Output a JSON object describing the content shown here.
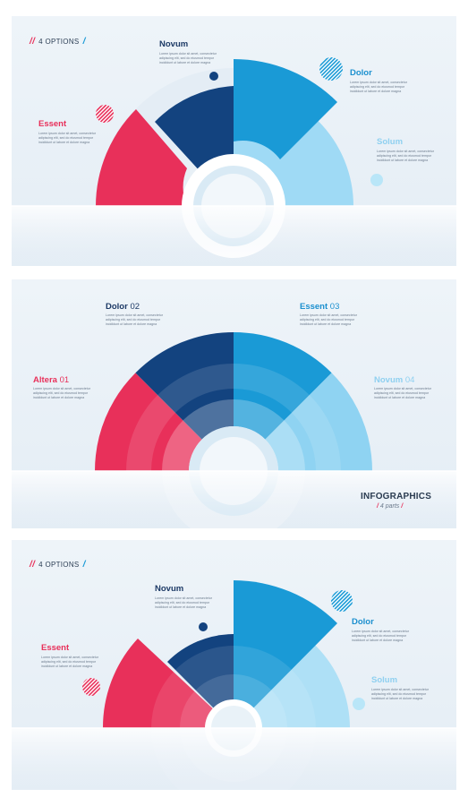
{
  "colors": {
    "red": "#e8305a",
    "dark_blue": "#13437f",
    "blue": "#1a9ad6",
    "light_blue": "#8fd3f2",
    "bg": "#eaf1f7"
  },
  "paragraph": "Lorem ipsum dolor sit amet, consectetur adipiscing elit, sed do eiusmod tempor incididunt ut labore et dolore magna",
  "panel1": {
    "options_label": "4 OPTIONS",
    "labels": {
      "novum": "Novum",
      "dolor": "Dolor",
      "essent": "Essent",
      "solum": "Solum"
    }
  },
  "panel2": {
    "labels": {
      "dolor": "Dolor",
      "dolor_num": "02",
      "essent": "Essent",
      "essent_num": "03",
      "altera": "Altera",
      "altera_num": "01",
      "novum": "Novum",
      "novum_num": "04"
    },
    "title": "INFOGRAPHICS",
    "subtitle": "4 parts"
  },
  "panel3": {
    "options_label": "4 OPTIONS",
    "labels": {
      "novum": "Novum",
      "dolor": "Dolor",
      "essent": "Essent",
      "solum": "Solum"
    }
  },
  "icons": [
    "striped-circle-icon",
    "dot-icon"
  ]
}
